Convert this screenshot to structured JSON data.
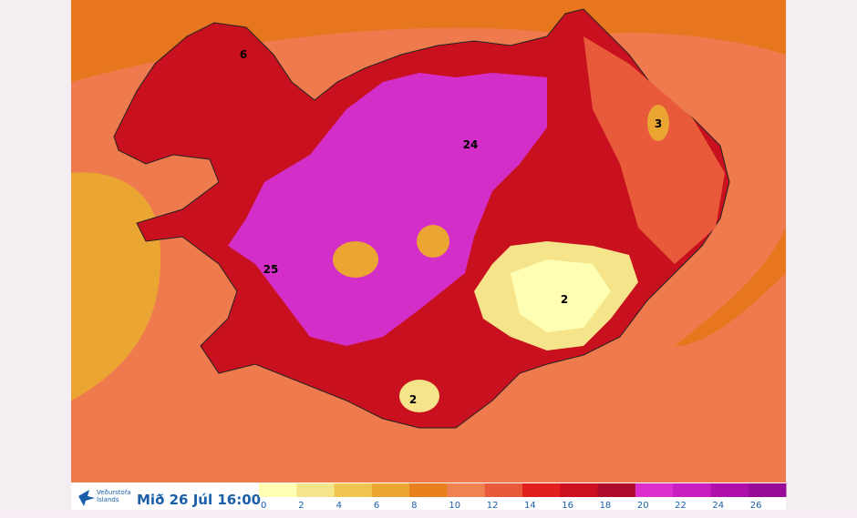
{
  "logo": {
    "line1": "Veðurstofa",
    "line2": "Íslands"
  },
  "timestamp": "Mið 26 Júl 16:00",
  "map_labels": [
    "6",
    "3",
    "24",
    "25",
    "2",
    "2"
  ],
  "legend": {
    "ticks": [
      0,
      2,
      4,
      6,
      8,
      10,
      12,
      14,
      16,
      18,
      20,
      22,
      24,
      26
    ],
    "colors": [
      "#ffffb4",
      "#f5e48a",
      "#f0c650",
      "#eba532",
      "#e8801e",
      "#f08252",
      "#e85a3a",
      "#e01e1e",
      "#cc1020",
      "#ad0c2a",
      "#dc30cc",
      "#c820c0",
      "#b010aa",
      "#980a98"
    ]
  }
}
